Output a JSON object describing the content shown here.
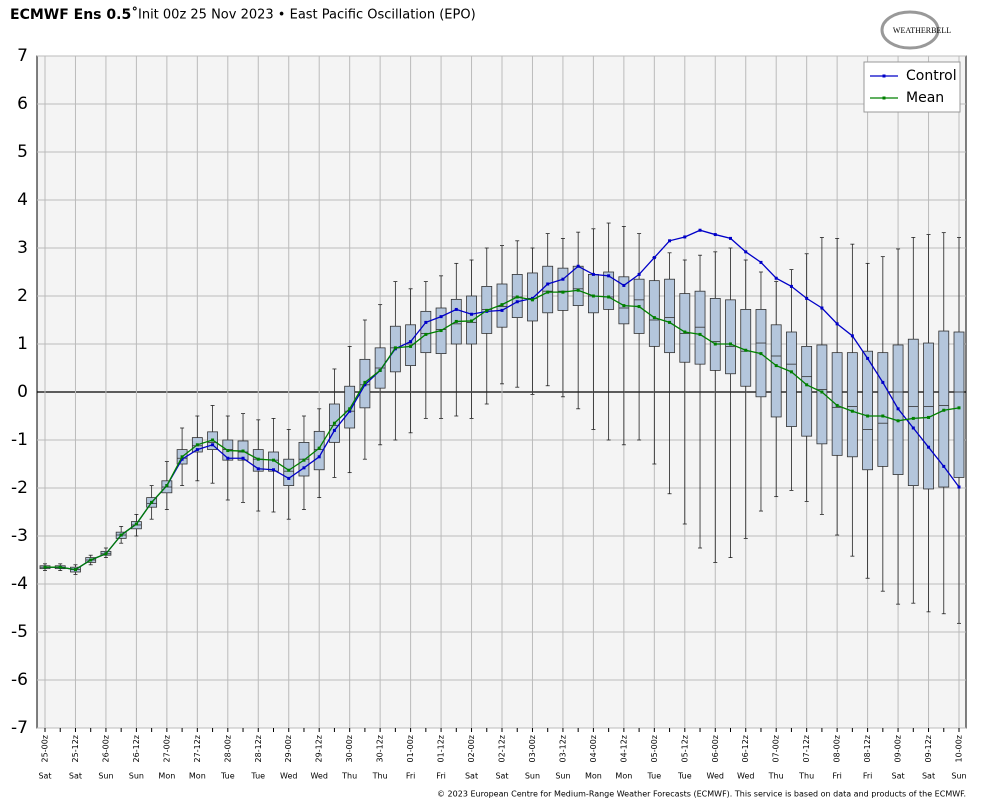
{
  "chart_data": {
    "type": "box",
    "title": "ECMWF Ens 0.5˚",
    "subtitle": "Init 00z 25 Nov 2023 • East Pacific Oscillation (EPO)",
    "logo": "WEATHERBELL",
    "footer": "© 2023 European Centre for Medium-Range Weather Forecasts (ECMWF). This service is based on data and products of the ECMWF.",
    "categories": [
      "25-00z",
      null,
      "25-12z",
      null,
      "26-00z",
      null,
      "26-12z",
      null,
      "27-00z",
      null,
      "27-12z",
      null,
      "28-00z",
      null,
      "28-12z",
      null,
      "29-00z",
      null,
      "29-12z",
      null,
      "30-00z",
      null,
      "30-12z",
      null,
      "01-00z",
      null,
      "01-12z",
      null,
      "02-00z",
      null,
      "02-12z",
      null,
      "03-00z",
      null,
      "03-12z",
      null,
      "04-00z",
      null,
      "04-12z",
      null,
      "05-00z",
      null,
      "05-12z",
      null,
      "06-00z",
      null,
      "06-12z",
      null,
      "07-00z",
      null,
      "07-12z",
      null,
      "08-00z",
      null,
      "08-12z",
      null,
      "09-00z",
      null,
      "09-12z",
      null,
      "10-00z"
    ],
    "days": [
      "Sat",
      null,
      "Sat",
      null,
      "Sun",
      null,
      "Sun",
      null,
      "Mon",
      null,
      "Mon",
      null,
      "Tue",
      null,
      "Tue",
      null,
      "Wed",
      null,
      "Wed",
      null,
      "Thu",
      null,
      "Thu",
      null,
      "Fri",
      null,
      "Fri",
      null,
      "Sat",
      null,
      "Sat",
      null,
      "Sun",
      null,
      "Sun",
      null,
      "Mon",
      null,
      "Mon",
      null,
      "Tue",
      null,
      "Tue",
      null,
      "Wed",
      null,
      "Wed",
      null,
      "Thu",
      null,
      "Thu",
      null,
      "Fri",
      null,
      "Fri",
      null,
      "Sat",
      null,
      "Sat",
      null,
      "Sun"
    ],
    "box_color": "#b4c6dc",
    "boxes": {
      "min": [
        -3.72,
        -3.72,
        -3.8,
        -3.6,
        -3.45,
        -3.15,
        -3.0,
        -2.65,
        -2.45,
        -1.95,
        -1.85,
        -1.9,
        -2.25,
        -2.3,
        -2.48,
        -2.5,
        -2.65,
        -2.45,
        -2.2,
        -1.78,
        -1.68,
        -1.4,
        -1.1,
        -1.0,
        -0.85,
        -0.55,
        -0.55,
        -0.5,
        -0.55,
        -0.25,
        0.17,
        0.1,
        -0.05,
        0.13,
        -0.1,
        -0.35,
        -0.78,
        -1.0,
        -1.1,
        -1.0,
        -1.5,
        -2.12,
        -2.75,
        -3.25,
        -3.55,
        -3.45,
        -3.05,
        -2.48,
        -2.18,
        -2.05,
        -2.28,
        -2.55,
        -2.98,
        -3.42,
        -3.88,
        -4.15,
        -4.42,
        -4.4,
        -4.58,
        -4.62,
        -4.82
      ],
      "q1": [
        -3.68,
        -3.68,
        -3.75,
        -3.55,
        -3.4,
        -3.05,
        -2.85,
        -2.4,
        -2.1,
        -1.5,
        -1.25,
        -1.2,
        -1.42,
        -1.42,
        -1.65,
        -1.65,
        -1.95,
        -1.75,
        -1.62,
        -1.05,
        -0.75,
        -0.33,
        0.08,
        0.42,
        0.55,
        0.82,
        0.8,
        1.0,
        1.0,
        1.22,
        1.35,
        1.55,
        1.48,
        1.65,
        1.7,
        1.8,
        1.65,
        1.72,
        1.42,
        1.22,
        0.95,
        0.82,
        0.62,
        0.58,
        0.45,
        0.38,
        0.12,
        -0.1,
        -0.52,
        -0.72,
        -0.92,
        -1.08,
        -1.32,
        -1.35,
        -1.62,
        -1.55,
        -1.72,
        -1.95,
        -2.02,
        -1.98,
        -1.78
      ],
      "median": [
        -3.65,
        -3.65,
        -3.7,
        -3.5,
        -3.37,
        -2.98,
        -2.77,
        -2.32,
        -1.98,
        -1.38,
        -1.12,
        -1.05,
        -1.2,
        -1.25,
        -1.4,
        -1.42,
        -1.65,
        -1.4,
        -1.2,
        -0.7,
        -0.4,
        0.15,
        0.5,
        0.92,
        1.0,
        1.22,
        1.3,
        1.42,
        1.45,
        1.72,
        1.78,
        1.98,
        1.95,
        2.1,
        2.1,
        2.15,
        2.0,
        1.98,
        1.75,
        1.92,
        1.5,
        1.55,
        1.22,
        1.35,
        1.05,
        0.95,
        0.85,
        1.02,
        0.75,
        0.58,
        0.32,
        0.05,
        -0.32,
        -0.3,
        -0.78,
        -0.65,
        0.0,
        -0.3,
        -0.3,
        -0.28,
        0.0
      ],
      "q3": [
        -3.62,
        -3.62,
        -3.65,
        -3.45,
        -3.32,
        -2.92,
        -2.7,
        -2.2,
        -1.85,
        -1.2,
        -0.95,
        -0.83,
        -1.0,
        -1.02,
        -1.2,
        -1.25,
        -1.4,
        -1.05,
        -0.82,
        -0.25,
        0.12,
        0.68,
        0.92,
        1.37,
        1.4,
        1.68,
        1.75,
        1.93,
        2.0,
        2.2,
        2.25,
        2.45,
        2.48,
        2.62,
        2.58,
        2.62,
        2.45,
        2.5,
        2.4,
        2.35,
        2.32,
        2.35,
        2.05,
        2.1,
        1.95,
        1.92,
        1.72,
        1.72,
        1.4,
        1.25,
        0.95,
        0.98,
        0.82,
        0.82,
        0.85,
        0.82,
        0.98,
        1.1,
        1.02,
        1.27,
        1.25
      ],
      "max": [
        -3.58,
        -3.58,
        -3.6,
        -3.4,
        -3.25,
        -2.8,
        -2.55,
        -1.95,
        -1.45,
        -0.75,
        -0.5,
        -0.28,
        -0.5,
        -0.45,
        -0.58,
        -0.55,
        -0.78,
        -0.5,
        -0.35,
        0.48,
        0.95,
        1.5,
        1.82,
        2.3,
        2.15,
        2.3,
        2.42,
        2.68,
        2.75,
        3.0,
        3.05,
        3.15,
        3.0,
        3.3,
        3.2,
        3.33,
        3.4,
        3.52,
        3.45,
        3.3,
        2.8,
        2.9,
        2.75,
        2.85,
        2.92,
        3.0,
        2.75,
        2.5,
        2.3,
        2.55,
        2.88,
        3.22,
        3.2,
        3.08,
        2.68,
        2.82,
        2.98,
        3.22,
        3.28,
        3.32,
        3.22
      ]
    },
    "series": [
      {
        "name": "Control",
        "color": "#0000c8",
        "values": [
          -3.65,
          -3.65,
          -3.7,
          -3.5,
          -3.37,
          -2.98,
          -2.75,
          -2.3,
          -1.95,
          -1.4,
          -1.2,
          -1.1,
          -1.38,
          -1.38,
          -1.6,
          -1.62,
          -1.8,
          -1.58,
          -1.35,
          -0.8,
          -0.4,
          0.15,
          0.45,
          0.9,
          1.05,
          1.45,
          1.57,
          1.72,
          1.62,
          1.68,
          1.7,
          1.88,
          1.95,
          2.25,
          2.35,
          2.62,
          2.45,
          2.42,
          2.22,
          2.45,
          2.8,
          3.15,
          3.23,
          3.37,
          3.28,
          3.2,
          2.92,
          2.7,
          2.37,
          2.2,
          1.95,
          1.75,
          1.42,
          1.17,
          0.7,
          0.2,
          -0.35,
          -0.75,
          -1.15,
          -1.55,
          -1.98
        ]
      },
      {
        "name": "Mean",
        "color": "#008000",
        "values": [
          -3.65,
          -3.65,
          -3.7,
          -3.5,
          -3.37,
          -2.98,
          -2.75,
          -2.3,
          -1.95,
          -1.35,
          -1.1,
          -1.0,
          -1.22,
          -1.23,
          -1.4,
          -1.42,
          -1.63,
          -1.42,
          -1.17,
          -0.65,
          -0.35,
          0.2,
          0.45,
          0.92,
          0.95,
          1.2,
          1.28,
          1.47,
          1.48,
          1.7,
          1.82,
          1.98,
          1.92,
          2.08,
          2.08,
          2.12,
          2.0,
          1.98,
          1.8,
          1.78,
          1.55,
          1.45,
          1.25,
          1.2,
          1.0,
          1.0,
          0.87,
          0.8,
          0.55,
          0.42,
          0.15,
          0.0,
          -0.28,
          -0.4,
          -0.5,
          -0.5,
          -0.6,
          -0.55,
          -0.53,
          -0.38,
          -0.33
        ]
      }
    ],
    "ylim": [
      -7,
      7
    ],
    "yticks": [
      -7,
      -6,
      -5,
      -4,
      -3,
      -2,
      -1,
      0,
      1,
      2,
      3,
      4,
      5,
      6,
      7
    ],
    "grid": true,
    "legend": "upper right"
  }
}
